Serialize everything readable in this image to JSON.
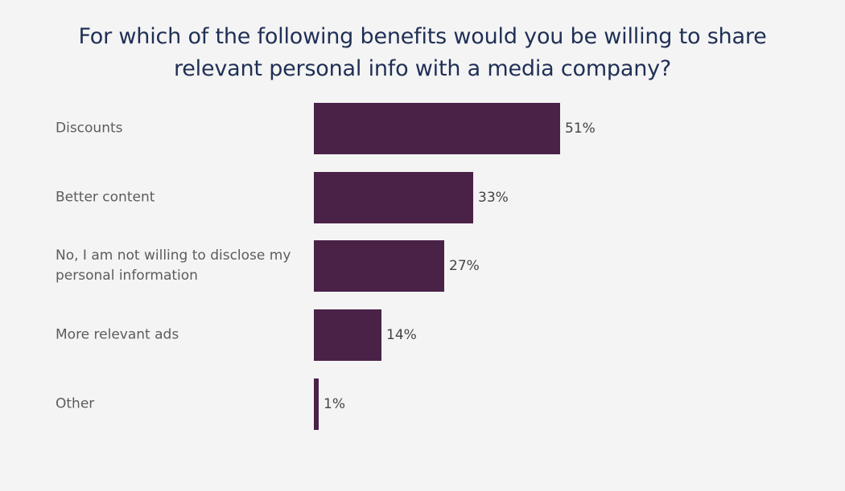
{
  "chart_data": {
    "type": "bar",
    "orientation": "horizontal",
    "title_lines": [
      "For which of the following benefits would you be willing to share",
      "relevant personal info with a media company?"
    ],
    "categories": [
      "Discounts",
      "Better content",
      "No, I am not willing to disclose my personal information",
      "More relevant ads",
      "Other"
    ],
    "values": [
      51,
      33,
      27,
      14,
      1
    ],
    "value_labels": [
      "51%",
      "33%",
      "27%",
      "14%",
      "1%"
    ],
    "xlim": [
      0,
      100
    ],
    "xlabel": "",
    "ylabel": "",
    "bar_color": "#4a2248"
  }
}
